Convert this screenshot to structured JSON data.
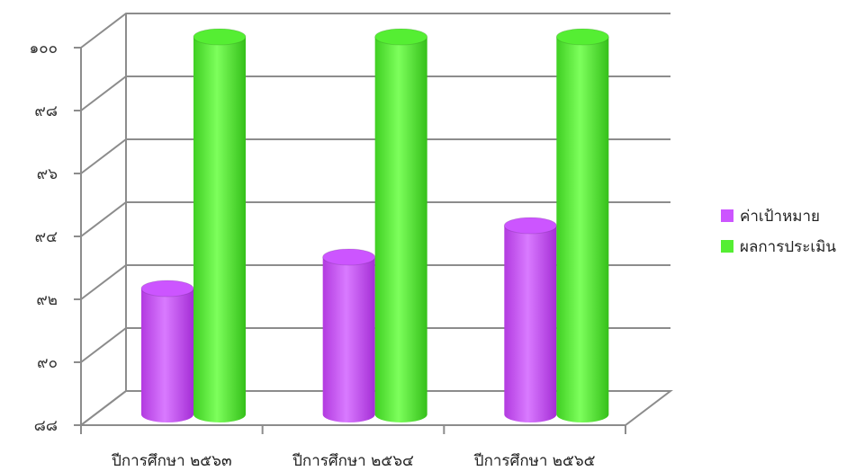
{
  "colors": {
    "target": "#cc55ff",
    "result": "#55ee33",
    "grid": "#8c8c8c"
  },
  "chart_data": {
    "type": "bar",
    "title": "",
    "xlabel": "",
    "ylabel": "",
    "ylim": [
      88,
      100
    ],
    "y_tick_values": [
      88,
      90,
      92,
      94,
      96,
      98,
      100
    ],
    "y_tick_labels": [
      "๘๘",
      "๙๐",
      "๙๒",
      "๙๔",
      "๙๖",
      "๙๘",
      "๑๐๐"
    ],
    "categories": [
      "ปีการศึกษา ๒๕๖๓",
      "ปีการศึกษา ๒๕๖๔",
      "ปีการศึกษา ๒๕๖๕"
    ],
    "series": [
      {
        "name": "ค่าเป้าหมาย",
        "values": [
          92,
          93,
          94
        ]
      },
      {
        "name": "ผลการประเมิน",
        "values": [
          100,
          100,
          100
        ]
      }
    ],
    "grid": true,
    "legend_position": "right"
  }
}
